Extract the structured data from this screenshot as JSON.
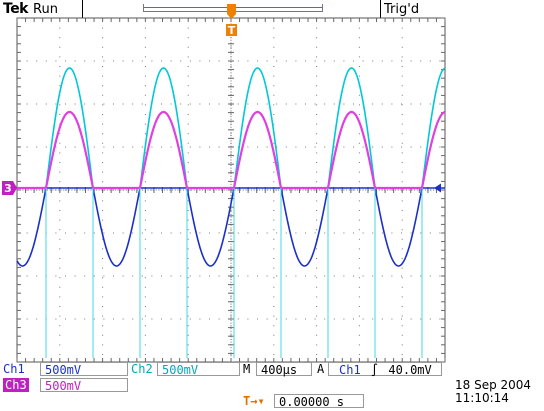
{
  "header": {
    "brand": "Tek",
    "acq_state": "Run",
    "trigger_status": "Trig'd"
  },
  "markers": {
    "trigger_pos": "T",
    "ch3_ground": "3"
  },
  "readouts": {
    "ch1_label": "Ch1",
    "ch1_scale": "500mV",
    "ch2_label": "Ch2",
    "ch2_scale": "500mV",
    "timebase_label": "M",
    "timebase": "400µs",
    "trigger_mode": "A",
    "trigger_source": "Ch1",
    "trigger_slope": "∫",
    "trigger_level": "40.0mV",
    "ch3_label": "Ch3",
    "ch3_scale": "500mV",
    "trigger_offset_icon": "T→▾",
    "trigger_offset": "0.00000 s",
    "date": "18 Sep  2004",
    "time": "11:10:14"
  },
  "colors": {
    "ch1": "#1a30c8",
    "ch2": "#00c0d0",
    "ch3": "#e040e0",
    "trigger": "#f08000",
    "grid": "#6a6a6a"
  }
}
